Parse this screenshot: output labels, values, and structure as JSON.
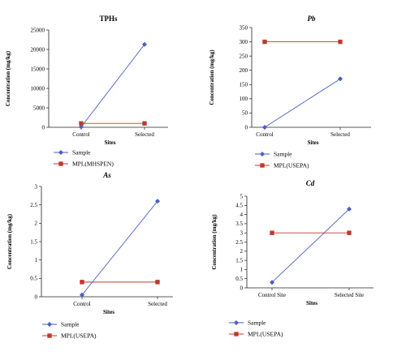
{
  "chart_data": [
    {
      "type": "line",
      "title": "TPHs",
      "title_style": "bold",
      "xlabel": "Sites",
      "ylabel": "Concentration (mg/kg)",
      "categories": [
        "Control",
        "Selected"
      ],
      "ylim": [
        0,
        25000
      ],
      "yticks": [
        "0",
        "5000",
        "10000",
        "15000",
        "20000",
        "25000"
      ],
      "grid": false,
      "legend_position": "bottom",
      "series": [
        {
          "name": "Sample",
          "values": [
            100,
            21300
          ],
          "color": "#4a5ec4",
          "marker": "diamond"
        },
        {
          "name": "MPL(MHSPEN)",
          "values": [
            1000,
            1000
          ],
          "color": "#c0392b",
          "marker": "square"
        }
      ]
    },
    {
      "type": "line",
      "title": "Pb",
      "title_style": "bold-italic",
      "xlabel": "Sites",
      "ylabel": "Concentration (mg/kg)",
      "categories": [
        "Control",
        "Selected"
      ],
      "ylim": [
        0,
        350
      ],
      "yticks": [
        "0",
        "50",
        "100",
        "150",
        "200",
        "250",
        "300",
        "350"
      ],
      "grid": false,
      "legend_position": "bottom",
      "series": [
        {
          "name": "Sample",
          "values": [
            0,
            170
          ],
          "color": "#4a5ec4",
          "marker": "diamond"
        },
        {
          "name": "MPL(USEPA)",
          "values": [
            300,
            300
          ],
          "color": "#c0392b",
          "marker": "square"
        }
      ]
    },
    {
      "type": "line",
      "title": "As",
      "title_style": "bold-italic",
      "xlabel": "Sites",
      "ylabel": "Concentration (mg/kg)",
      "categories": [
        "Control",
        "Selected"
      ],
      "ylim": [
        0,
        3
      ],
      "yticks": [
        "0",
        "0.5",
        "1",
        "1.5",
        "2",
        "2.5",
        "3"
      ],
      "grid": false,
      "legend_position": "bottom",
      "series": [
        {
          "name": "Sample",
          "values": [
            0.05,
            2.6
          ],
          "color": "#4a5ec4",
          "marker": "diamond"
        },
        {
          "name": "MPL(USEPA)",
          "values": [
            0.4,
            0.4
          ],
          "color": "#c0392b",
          "marker": "square"
        }
      ]
    },
    {
      "type": "line",
      "title": "Cd",
      "title_style": "bold-italic",
      "xlabel": "Sites",
      "ylabel": "Concentration (mg/kg)",
      "categories": [
        "Control Site",
        "Selected Site"
      ],
      "ylim": [
        0,
        5
      ],
      "yticks": [
        "0",
        "0.5",
        "1",
        "1.5",
        "2",
        "2.5",
        "3",
        "3.5",
        "4",
        "4.5",
        "5"
      ],
      "grid": false,
      "legend_position": "bottom",
      "series": [
        {
          "name": "Sample",
          "values": [
            0.3,
            4.3
          ],
          "color": "#4a5ec4",
          "marker": "diamond"
        },
        {
          "name": "MPL(USEPA)",
          "values": [
            3,
            3
          ],
          "color": "#c0392b",
          "marker": "square"
        }
      ]
    }
  ]
}
